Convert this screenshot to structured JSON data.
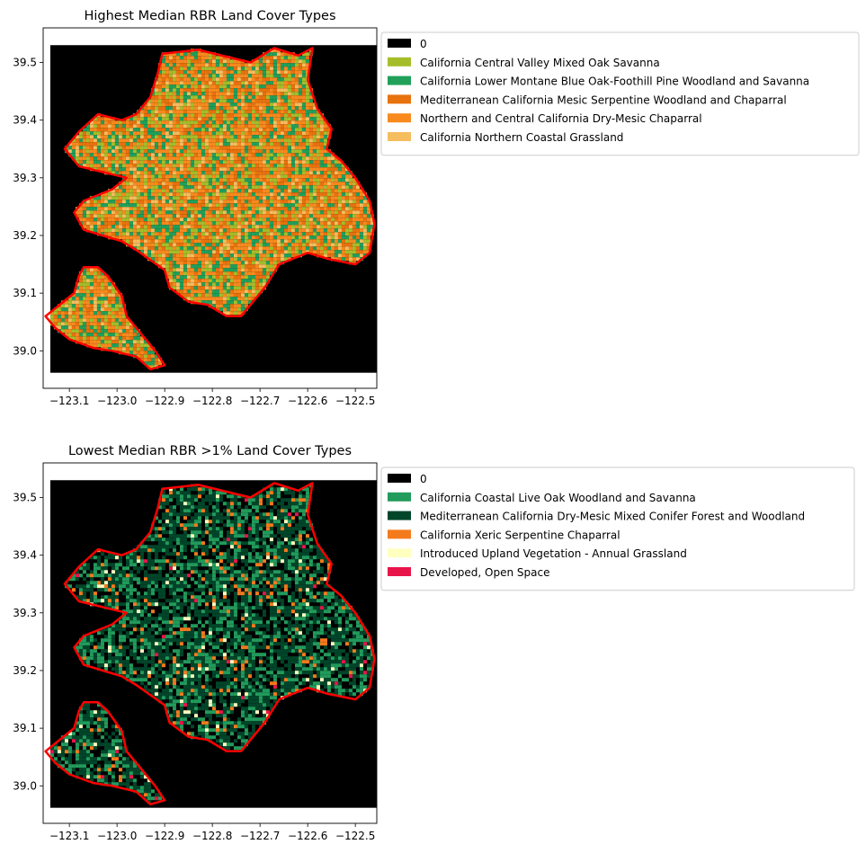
{
  "chart_data": [
    {
      "type": "heatmap",
      "title": "Highest Median RBR Land Cover Types",
      "xlabel": "",
      "ylabel": "",
      "xticks": [
        -123.1,
        -123.0,
        -122.9,
        -122.8,
        -122.7,
        -122.6,
        -122.5
      ],
      "xtick_labels": [
        "−123.1",
        "−123.0",
        "−122.9",
        "−122.8",
        "−122.7",
        "−122.6",
        "−122.5"
      ],
      "yticks": [
        39.0,
        39.1,
        39.2,
        39.3,
        39.4,
        39.5
      ],
      "ytick_labels": [
        "39.0",
        "39.1",
        "39.2",
        "39.3",
        "39.4",
        "39.5"
      ],
      "xlim": [
        -123.155,
        -122.455
      ],
      "ylim": [
        38.935,
        39.56
      ],
      "raster_extent": {
        "x": [
          -123.14,
          -122.455
        ],
        "y": [
          38.962,
          39.53
        ]
      },
      "legend_position": "outside upper left",
      "background_color": "#000000",
      "boundary_color": "#ff0000",
      "legend": [
        {
          "label": "0",
          "color": "#000000"
        },
        {
          "label": "California Central Valley Mixed Oak Savanna",
          "color": "#a6bd2a"
        },
        {
          "label": "California Lower Montane Blue Oak-Foothill Pine Woodland and Savanna",
          "color": "#21a05a"
        },
        {
          "label": "Mediterranean California Mesic Serpentine Woodland and Chaparral",
          "color": "#e8720e"
        },
        {
          "label": "Northern and Central California Dry-Mesic Chaparral",
          "color": "#f88a1e"
        },
        {
          "label": "California Northern Coastal Grassland",
          "color": "#f5bd5d"
        }
      ],
      "class_weights": [
        0.0,
        0.18,
        0.2,
        0.22,
        0.3,
        0.1
      ]
    },
    {
      "type": "heatmap",
      "title": "Lowest Median RBR >1% Land Cover Types",
      "xlabel": "",
      "ylabel": "",
      "xticks": [
        -123.1,
        -123.0,
        -122.9,
        -122.8,
        -122.7,
        -122.6,
        -122.5
      ],
      "xtick_labels": [
        "−123.1",
        "−123.0",
        "−122.9",
        "−122.8",
        "−122.7",
        "−122.6",
        "−122.5"
      ],
      "yticks": [
        39.0,
        39.1,
        39.2,
        39.3,
        39.4,
        39.5
      ],
      "ytick_labels": [
        "39.0",
        "39.1",
        "39.2",
        "39.3",
        "39.4",
        "39.5"
      ],
      "xlim": [
        -123.155,
        -122.455
      ],
      "ylim": [
        38.935,
        39.56
      ],
      "raster_extent": {
        "x": [
          -123.14,
          -122.455
        ],
        "y": [
          38.962,
          39.53
        ]
      },
      "legend_position": "outside upper left",
      "background_color": "#000000",
      "boundary_color": "#ff0000",
      "legend": [
        {
          "label": "0",
          "color": "#000000"
        },
        {
          "label": "California Coastal Live Oak Woodland and Savanna",
          "color": "#229b5c"
        },
        {
          "label": "Mediterranean California Dry-Mesic Mixed Conifer Forest and Woodland",
          "color": "#00462a"
        },
        {
          "label": "California Xeric Serpentine Chaparral",
          "color": "#f47b1c"
        },
        {
          "label": "Introduced Upland Vegetation - Annual Grassland",
          "color": "#ffffc0"
        },
        {
          "label": "Developed, Open Space",
          "color": "#e8154a"
        }
      ],
      "class_weights": [
        0.25,
        0.25,
        0.42,
        0.05,
        0.02,
        0.01
      ]
    }
  ]
}
